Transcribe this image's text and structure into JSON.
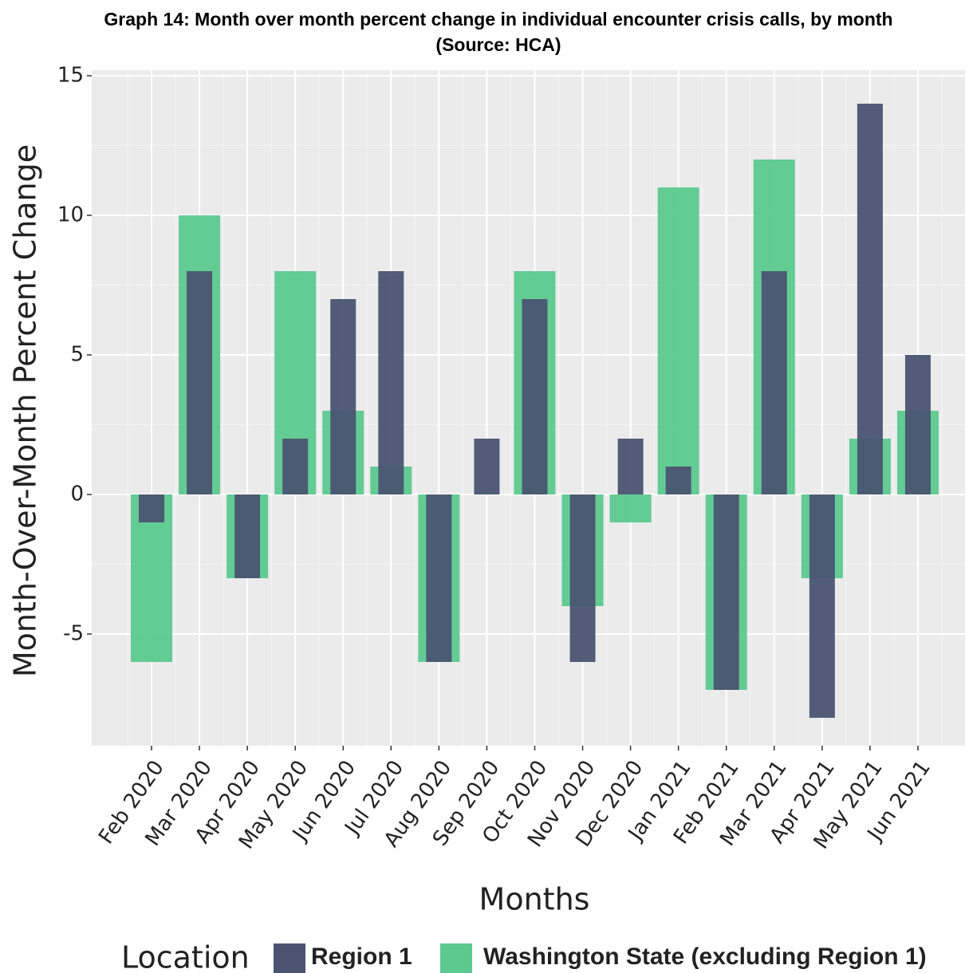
{
  "chart_data": {
    "type": "bar",
    "title": "Graph 14: Month over month percent change in individual encounter crisis calls, by month (Source: HCA)",
    "x_label": "Months",
    "y_label": "Month-Over-Month Percent Change",
    "legend_title": "Location",
    "categories": [
      "Feb 2020",
      "Mar 2020",
      "Apr 2020",
      "May 2020",
      "Jun 2020",
      "Jul 2020",
      "Aug 2020",
      "Sep 2020",
      "Oct 2020",
      "Nov 2020",
      "Dec 2020",
      "Jan 2021",
      "Feb 2021",
      "Mar 2021",
      "Apr 2021",
      "May 2021",
      "Jun 2021"
    ],
    "series": [
      {
        "name": "Washington State (excluding Region 1)",
        "color": "#5cc98f",
        "values": [
          -6,
          10,
          -3,
          8,
          3,
          1,
          -6,
          0,
          8,
          -4,
          -1,
          11,
          -7,
          12,
          -3,
          2,
          3
        ]
      },
      {
        "name": "Region 1",
        "color": "#4a5472",
        "values": [
          -1,
          8,
          -3,
          2,
          7,
          8,
          -6,
          2,
          7,
          -6,
          2,
          1,
          -7,
          8,
          -8,
          14,
          5
        ]
      }
    ],
    "ylim": [
      -9,
      15.2
    ],
    "yticks": [
      -5,
      0,
      5,
      10,
      15
    ],
    "grid": true
  }
}
